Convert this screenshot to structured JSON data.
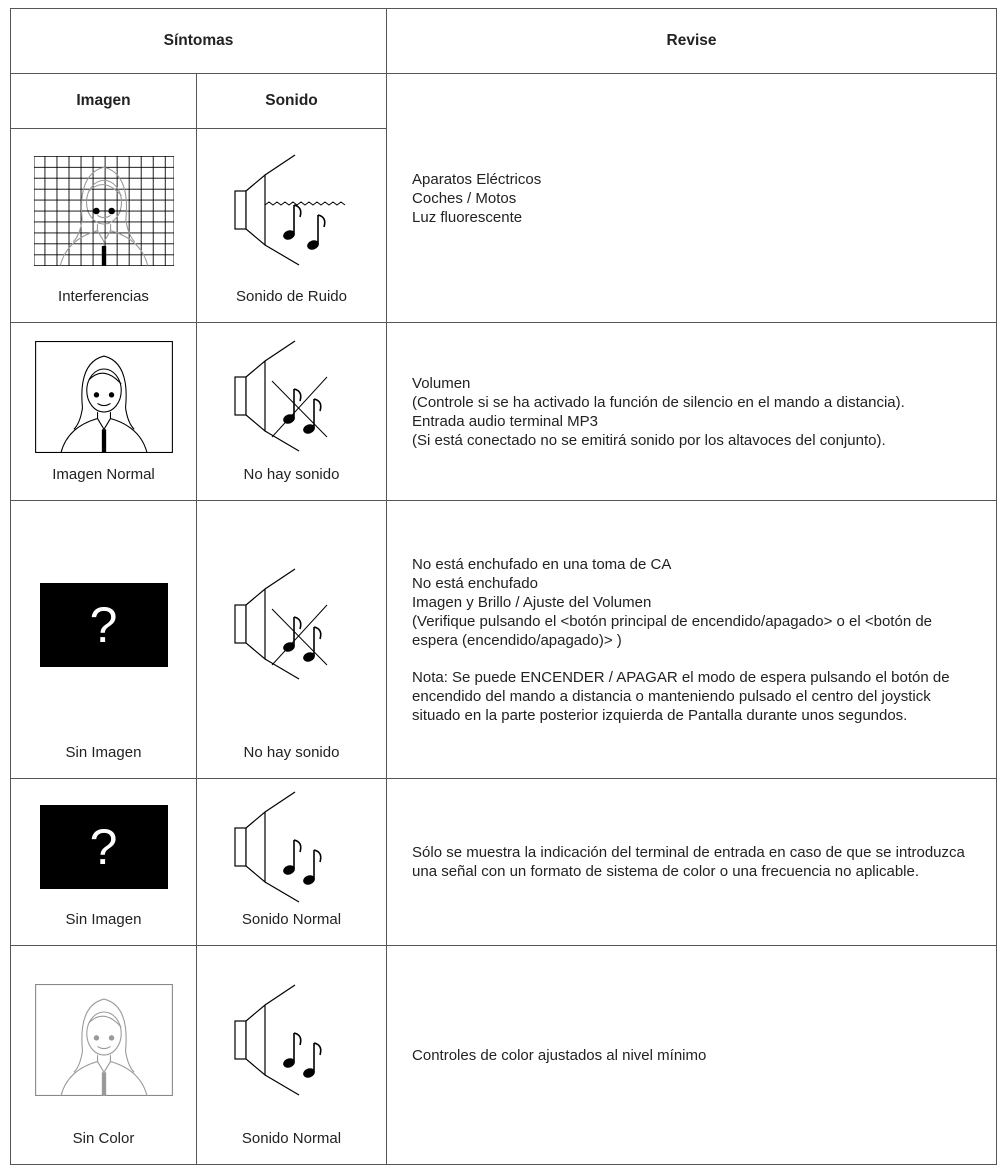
{
  "header": {
    "symptoms": "Síntomas",
    "check": "Revise"
  },
  "subheader": {
    "image": "Imagen",
    "sound": "Sonido"
  },
  "rows": [
    {
      "image": "Interferencias",
      "sound": "Sonido de Ruido",
      "check": [
        "Aparatos Eléctricos",
        "Coches / Motos",
        "Luz fluorescente"
      ]
    },
    {
      "image": "Imagen Normal",
      "sound": "No hay sonido",
      "check": [
        "Volumen",
        "(Controle si se ha activado la función de silencio en el mando a distancia).",
        "Entrada audio terminal MP3",
        "(Si está conectado no se emitirá sonido por los altavoces del conjunto)."
      ]
    },
    {
      "image": "Sin Imagen",
      "image_symbol": "?",
      "sound": "No hay sonido",
      "check": [
        "No está enchufado en una toma de CA",
        "No está enchufado",
        "Imagen y Brillo / Ajuste del Volumen",
        "(Verifique pulsando el <botón principal de encendido/apagado> o el <botón de espera (encendido/apagado)> )"
      ],
      "note": "Nota: Se puede ENCENDER / APAGAR el modo de espera pulsando el botón de encendido del mando a distancia o manteniendo pulsado el centro del joystick situado en la parte posterior izquierda de Pantalla durante unos segundos."
    },
    {
      "image": "Sin Imagen",
      "image_symbol": "?",
      "sound": "Sonido Normal",
      "check": [
        "Sólo se muestra la indicación del terminal de entrada en caso de que se introduzca una señal con un formato de sistema de color o una frecuencia no aplicable."
      ]
    },
    {
      "image": "Sin Color",
      "sound": "Sonido Normal",
      "check": [
        "Controles de color ajustados al nivel mínimo"
      ]
    }
  ]
}
